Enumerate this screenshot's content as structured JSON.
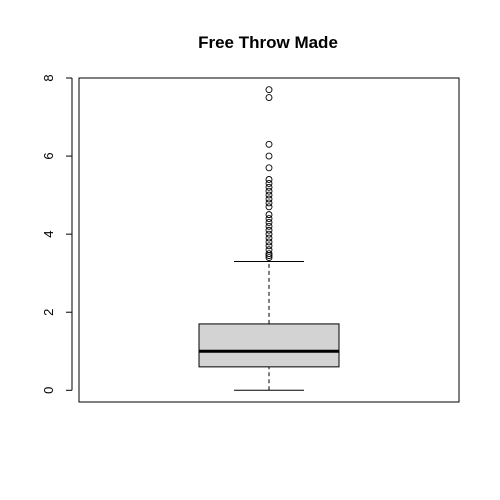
{
  "chart_data": {
    "type": "boxplot",
    "title": "Free Throw Made",
    "xlabel": "",
    "ylabel": "",
    "ylim": [
      -0.3,
      8.0
    ],
    "y_ticks": [
      0,
      2,
      4,
      6,
      8
    ],
    "y_tick_labels": [
      "0",
      "2",
      "4",
      "6",
      "8"
    ],
    "grid": false,
    "box": {
      "whisker_low": 0.0,
      "q1": 0.6,
      "median": 1.0,
      "q3": 1.7,
      "whisker_high": 3.3
    },
    "outliers": [
      3.4,
      3.45,
      3.5,
      3.6,
      3.7,
      3.8,
      3.9,
      4.0,
      4.1,
      4.2,
      4.3,
      4.4,
      4.5,
      4.7,
      4.8,
      4.9,
      5.0,
      5.1,
      5.2,
      5.3,
      5.4,
      5.7,
      6.0,
      6.3,
      7.5,
      7.7
    ],
    "colors": {
      "box_fill": "#d3d3d3",
      "stroke": "#000000"
    }
  }
}
